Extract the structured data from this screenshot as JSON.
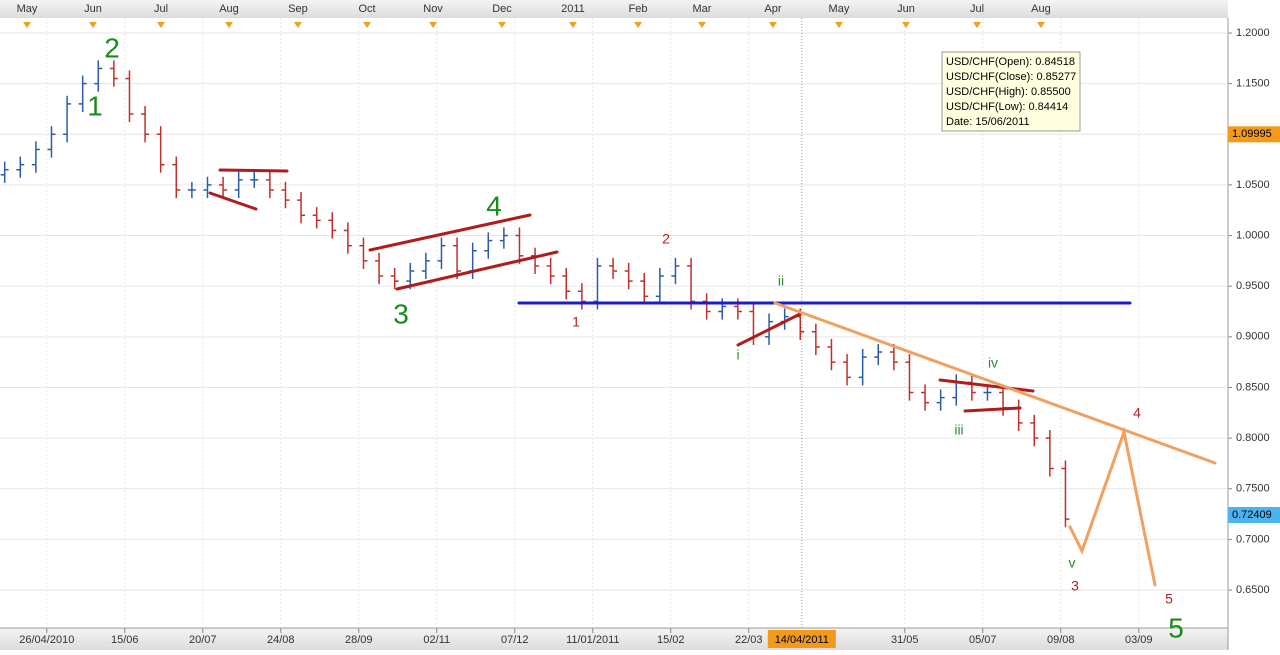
{
  "chart_data": {
    "type": "ohlc",
    "up_color": "#2a5caa",
    "down_color": "#c0302a",
    "grid": true,
    "xlim": [
      -0.3,
      78.42
    ],
    "ylim": [
      0.6125,
      1.2148
    ],
    "yticks": [
      {
        "value": 1.2,
        "label": "1.2000"
      },
      {
        "value": 1.15,
        "label": "1.1500"
      },
      {
        "value": 1.1,
        "label": "1.1000"
      },
      {
        "value": 1.05,
        "label": "1.0500"
      },
      {
        "value": 1.0,
        "label": "1.0000"
      },
      {
        "value": 0.95,
        "label": "0.9500"
      },
      {
        "value": 0.9,
        "label": "0.9000"
      },
      {
        "value": 0.85,
        "label": "0.8500"
      },
      {
        "value": 0.8,
        "label": "0.8000"
      },
      {
        "value": 0.75,
        "label": "0.7500"
      },
      {
        "value": 0.7,
        "label": "0.7000"
      },
      {
        "value": 0.65,
        "label": "0.6500"
      }
    ],
    "xticks": [
      {
        "value": 2.7,
        "label": "26/04/2010"
      },
      {
        "value": 7.7,
        "label": "15/06"
      },
      {
        "value": 12.7,
        "label": "20/07"
      },
      {
        "value": 17.7,
        "label": "24/08"
      },
      {
        "value": 22.7,
        "label": "28/09"
      },
      {
        "value": 27.7,
        "label": "02/11"
      },
      {
        "value": 32.7,
        "label": "07/12"
      },
      {
        "value": 37.7,
        "label": "11/01/2011"
      },
      {
        "value": 42.7,
        "label": "15/02"
      },
      {
        "value": 47.7,
        "label": "22/03"
      },
      {
        "value": 57.7,
        "label": "31/05"
      },
      {
        "value": 62.7,
        "label": "05/07"
      },
      {
        "value": 67.7,
        "label": "09/08"
      },
      {
        "value": 72.7,
        "label": "03/09"
      }
    ],
    "months": [
      {
        "value": 1.43,
        "label": "May"
      },
      {
        "value": 5.66,
        "label": "Jun"
      },
      {
        "value": 10.02,
        "label": "Jul"
      },
      {
        "value": 14.38,
        "label": "Aug"
      },
      {
        "value": 18.8,
        "label": "Sep"
      },
      {
        "value": 23.23,
        "label": "Oct"
      },
      {
        "value": 27.46,
        "label": "Nov"
      },
      {
        "value": 31.88,
        "label": "Dec"
      },
      {
        "value": 36.43,
        "label": "2011"
      },
      {
        "value": 40.6,
        "label": "Feb"
      },
      {
        "value": 44.7,
        "label": "Mar"
      },
      {
        "value": 49.25,
        "label": "Apr"
      },
      {
        "value": 53.48,
        "label": "May"
      },
      {
        "value": 57.78,
        "label": "Jun"
      },
      {
        "value": 62.33,
        "label": "Jul"
      },
      {
        "value": 66.43,
        "label": "Aug"
      }
    ],
    "cursor": {
      "value": 51.1,
      "label": "14/04/2011"
    },
    "price_markers": [
      1.09995,
      0.72409
    ],
    "tooltip": [
      "USD/CHF(Open): 0.84518",
      "USD/CHF(Close): 0.85277",
      "USD/CHF(High): 0.85500",
      "USD/CHF(Low): 0.84414",
      "Date: 15/06/2011"
    ],
    "annotations": {
      "primary": [
        "1",
        "2",
        "3",
        "4",
        "5"
      ],
      "minor": [
        "1",
        "2",
        "3",
        "4",
        "5"
      ],
      "sub": [
        "i",
        "ii",
        "iii",
        "iv",
        "v"
      ]
    },
    "open": [
      1.06,
      1.065,
      1.07,
      1.085,
      1.1,
      1.13,
      1.15,
      1.165,
      1.155,
      1.12,
      1.1,
      1.07,
      1.045,
      1.045,
      1.05,
      1.045,
      1.055,
      1.055,
      1.045,
      1.035,
      1.02,
      1.015,
      1.005,
      0.99,
      0.975,
      0.96,
      0.955,
      0.965,
      0.975,
      0.99,
      0.965,
      0.985,
      0.995,
      1.0,
      0.98,
      0.97,
      0.96,
      0.945,
      0.935,
      0.97,
      0.965,
      0.955,
      0.94,
      0.96,
      0.97,
      0.935,
      0.925,
      0.93,
      0.925,
      0.9,
      0.915,
      0.92,
      0.905,
      0.89,
      0.875,
      0.86,
      0.88,
      0.885,
      0.875,
      0.845,
      0.835,
      0.84,
      0.855,
      0.845,
      0.845,
      0.83,
      0.815,
      0.8,
      0.77
    ],
    "high": [
      1.073,
      1.078,
      1.093,
      1.108,
      1.138,
      1.158,
      1.173,
      1.173,
      1.163,
      1.128,
      1.108,
      1.078,
      1.053,
      1.058,
      1.058,
      1.063,
      1.063,
      1.063,
      1.053,
      1.043,
      1.028,
      1.023,
      1.013,
      0.998,
      0.983,
      0.968,
      0.973,
      0.983,
      0.998,
      0.998,
      0.993,
      1.003,
      1.008,
      1.008,
      0.988,
      0.978,
      0.968,
      0.953,
      0.978,
      0.978,
      0.973,
      0.963,
      0.968,
      0.978,
      0.978,
      0.943,
      0.938,
      0.938,
      0.933,
      0.923,
      0.928,
      0.928,
      0.913,
      0.898,
      0.883,
      0.888,
      0.893,
      0.893,
      0.883,
      0.853,
      0.848,
      0.863,
      0.863,
      0.853,
      0.853,
      0.838,
      0.823,
      0.808,
      0.778
    ],
    "low": [
      1.052,
      1.057,
      1.062,
      1.077,
      1.092,
      1.122,
      1.142,
      1.147,
      1.112,
      1.092,
      1.062,
      1.037,
      1.037,
      1.037,
      1.037,
      1.037,
      1.047,
      1.037,
      1.027,
      1.012,
      1.007,
      0.997,
      0.982,
      0.967,
      0.952,
      0.947,
      0.947,
      0.957,
      0.967,
      0.957,
      0.957,
      0.977,
      0.987,
      0.972,
      0.962,
      0.952,
      0.937,
      0.927,
      0.927,
      0.957,
      0.947,
      0.932,
      0.932,
      0.952,
      0.927,
      0.917,
      0.917,
      0.917,
      0.892,
      0.892,
      0.907,
      0.897,
      0.882,
      0.867,
      0.852,
      0.852,
      0.872,
      0.867,
      0.837,
      0.827,
      0.827,
      0.832,
      0.837,
      0.837,
      0.822,
      0.807,
      0.792,
      0.762,
      0.712
    ],
    "close": [
      1.065,
      1.07,
      1.085,
      1.1,
      1.13,
      1.15,
      1.165,
      1.155,
      1.12,
      1.1,
      1.07,
      1.045,
      1.045,
      1.05,
      1.045,
      1.055,
      1.055,
      1.045,
      1.035,
      1.02,
      1.015,
      1.005,
      0.99,
      0.975,
      0.96,
      0.955,
      0.965,
      0.975,
      0.99,
      0.965,
      0.985,
      0.995,
      1.0,
      0.98,
      0.97,
      0.96,
      0.945,
      0.935,
      0.97,
      0.965,
      0.955,
      0.94,
      0.96,
      0.97,
      0.935,
      0.925,
      0.93,
      0.925,
      0.9,
      0.915,
      0.92,
      0.905,
      0.89,
      0.875,
      0.86,
      0.88,
      0.885,
      0.875,
      0.845,
      0.835,
      0.84,
      0.855,
      0.845,
      0.845,
      0.83,
      0.815,
      0.8,
      0.77,
      0.72
    ]
  }
}
